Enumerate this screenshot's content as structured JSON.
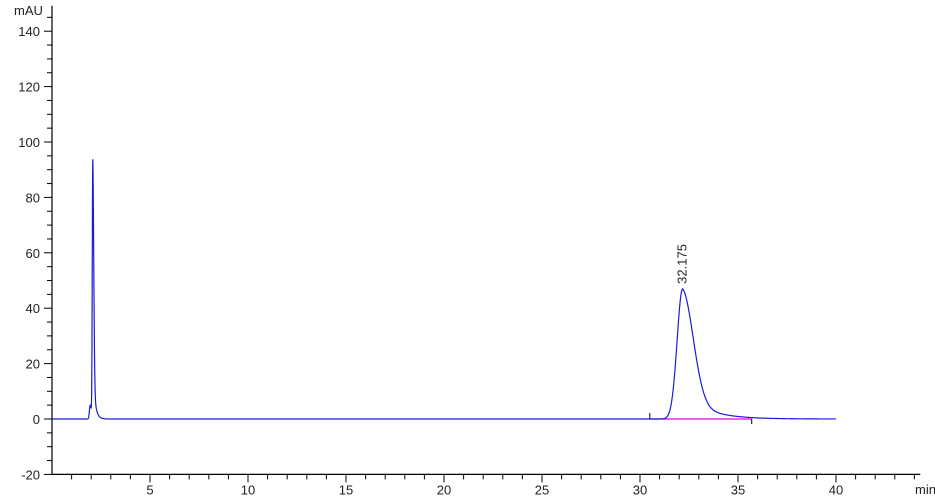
{
  "chart_data": {
    "type": "line",
    "title": "",
    "xlabel": "min",
    "ylabel": "mAU",
    "xlim": [
      0,
      44.3
    ],
    "ylim": [
      -20,
      147
    ],
    "x_ticks": [
      5,
      10,
      15,
      20,
      25,
      30,
      35,
      40
    ],
    "y_ticks": [
      -20,
      0,
      20,
      40,
      60,
      80,
      100,
      120,
      140
    ],
    "x_minor_step": 1,
    "y_minor_step": 5,
    "grid": false,
    "trace_range": [
      0,
      40
    ],
    "series": [
      {
        "color": "#1a1adb",
        "peaks": [
          {
            "time": 1.95,
            "height": 5
          },
          {
            "time": 2.08,
            "height": 93
          },
          {
            "time": 32.175,
            "height": 47,
            "label": "32.175"
          }
        ]
      }
    ],
    "integration_baseline": {
      "start": 30.5,
      "end": 35.7,
      "color": "#e000e0"
    }
  }
}
